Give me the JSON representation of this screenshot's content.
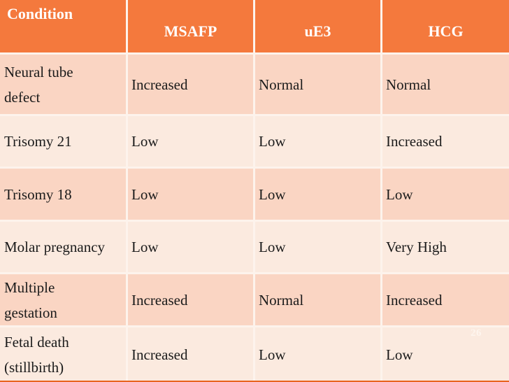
{
  "table": {
    "columns": [
      "Condition",
      "MSAFP",
      "uE3",
      "HCG"
    ],
    "rows": [
      {
        "condition": "Neural tube defect",
        "msafp": "Increased",
        "ue3": "Normal",
        "hcg": "Normal"
      },
      {
        "condition": "Trisomy 21",
        "msafp": "Low",
        "ue3": "Low",
        "hcg": "Increased"
      },
      {
        "condition": "Trisomy 18",
        "msafp": "Low",
        "ue3": "Low",
        "hcg": "Low"
      },
      {
        "condition": "Molar pregnancy",
        "msafp": "Low",
        "ue3": "Low",
        "hcg": "Very High"
      },
      {
        "condition": "Multiple gestation",
        "msafp": "Increased",
        "ue3": "Normal",
        "hcg": "Increased"
      },
      {
        "condition": "Fetal death (stillbirth)",
        "msafp": "Increased",
        "ue3": "Low",
        "hcg": "Low"
      }
    ]
  },
  "slide": {
    "page_number": "26"
  },
  "colors": {
    "header_bg": "#f4793d",
    "header_text": "#ffffff",
    "row_dark": "#fad5c3",
    "row_light": "#fbeadf",
    "divider": "#fdf3ec",
    "body_text": "#1b1b1b",
    "accent_line": "#e8641f",
    "page_number": "#fff6ef"
  }
}
